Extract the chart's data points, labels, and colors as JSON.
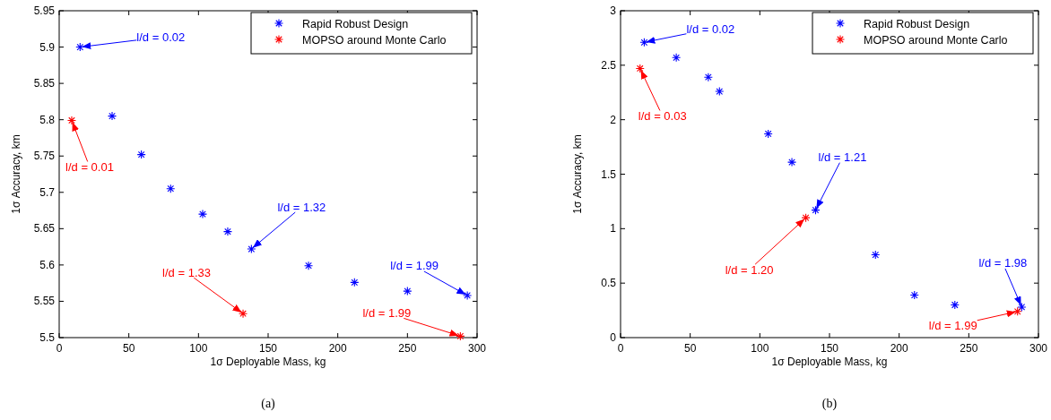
{
  "chart_data": [
    {
      "type": "scatter",
      "xlabel": "1σ Deployable Mass, kg",
      "ylabel": "1σ Accuracy, km",
      "xlim": [
        0,
        300
      ],
      "ylim": [
        5.5,
        5.95
      ],
      "xticks": [
        0,
        50,
        100,
        150,
        200,
        250,
        300
      ],
      "yticks": [
        5.5,
        5.55,
        5.6,
        5.65,
        5.7,
        5.75,
        5.8,
        5.85,
        5.9,
        5.95
      ],
      "marker": "cross",
      "legend": "top right",
      "series": [
        {
          "name": "Rapid Robust Design",
          "color": "#0000ff",
          "x": [
            15,
            38,
            59,
            80,
            103,
            121,
            138,
            179,
            212,
            250,
            293
          ],
          "values": [
            5.9,
            5.805,
            5.752,
            5.705,
            5.67,
            5.646,
            5.622,
            5.599,
            5.576,
            5.564,
            5.558
          ]
        },
        {
          "name": "MOPSO around Monte Carlo",
          "color": "#ff0000",
          "x": [
            9,
            132,
            288
          ],
          "values": [
            5.799,
            5.533,
            5.502
          ]
        }
      ],
      "annotations": [
        {
          "text": "l/d = 0.02",
          "x": 15,
          "y": 5.9
        },
        {
          "text": "l/d = 0.01",
          "x": 9,
          "y": 5.799
        },
        {
          "text": "l/d = 1.32",
          "x": 138,
          "y": 5.622
        },
        {
          "text": "l/d = 1.33",
          "x": 132,
          "y": 5.533
        },
        {
          "text": "l/d = 1.99",
          "x": 293,
          "y": 5.558
        },
        {
          "text": "l/d = 1.99",
          "x": 288,
          "y": 5.502
        },
        "(a)"
      ]
    },
    {
      "type": "scatter",
      "xlabel": "1σ Deployable Mass, kg",
      "ylabel": "1σ Accuracy, km",
      "xlim": [
        0,
        300
      ],
      "ylim": [
        0,
        3
      ],
      "xticks": [
        0,
        50,
        100,
        150,
        200,
        250,
        300
      ],
      "yticks": [
        0,
        0.5,
        1,
        1.5,
        2,
        2.5,
        3
      ],
      "marker": "cross",
      "legend": "top right",
      "series": [
        {
          "name": "Rapid Robust Design",
          "color": "#0000ff",
          "x": [
            17,
            40,
            63,
            71,
            106,
            123,
            140,
            183,
            211,
            240,
            288
          ],
          "values": [
            2.71,
            2.57,
            2.39,
            2.26,
            1.87,
            1.61,
            1.17,
            0.76,
            0.39,
            0.3,
            0.28
          ]
        },
        {
          "name": "MOPSO around Monte Carlo",
          "color": "#ff0000",
          "x": [
            14,
            133,
            285
          ],
          "values": [
            2.47,
            1.1,
            0.24
          ]
        }
      ],
      "annotations": [
        {
          "text": "l/d = 0.02",
          "x": 17,
          "y": 2.71
        },
        {
          "text": "l/d = 0.03",
          "x": 14,
          "y": 2.47
        },
        {
          "text": "l/d = 1.21",
          "x": 140,
          "y": 1.17
        },
        {
          "text": "l/d = 1.20",
          "x": 133,
          "y": 1.1
        },
        {
          "text": "l/d = 1.98",
          "x": 288,
          "y": 0.28
        },
        {
          "text": "l/d = 1.99",
          "x": 285,
          "y": 0.24
        },
        "(b)"
      ]
    }
  ]
}
